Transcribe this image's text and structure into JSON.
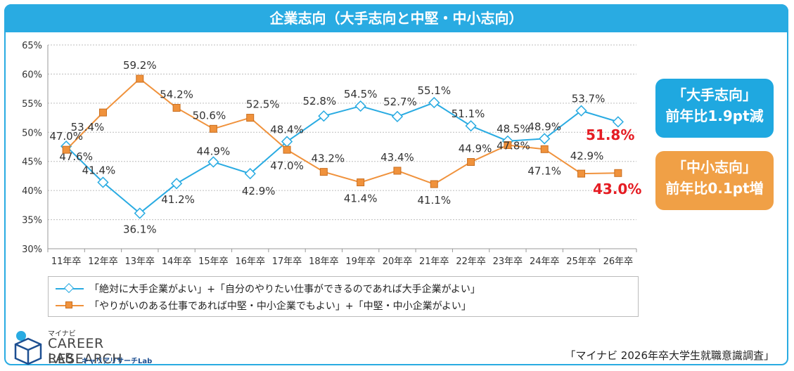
{
  "title": "企業志向（大手志向と中堅・中小志向）",
  "colors": {
    "large": "#29abe2",
    "small": "#f0923c",
    "accent_red": "#e51c23"
  },
  "chart_data": {
    "type": "line",
    "title": "企業志向（大手志向と中堅・中小志向）",
    "categories": [
      "11年卒",
      "12年卒",
      "13年卒",
      "14年卒",
      "15年卒",
      "16年卒",
      "17年卒",
      "18年卒",
      "19年卒",
      "20年卒",
      "21年卒",
      "22年卒",
      "23年卒",
      "24年卒",
      "25年卒",
      "26年卒"
    ],
    "ylim": [
      30,
      65
    ],
    "yticks": [
      "30%",
      "35%",
      "40%",
      "45%",
      "50%",
      "55%",
      "60%",
      "65%"
    ],
    "series": [
      {
        "name": "「絶対に大手企業がよい」+「自分のやりたい仕事ができるのであれば大手企業がよい」",
        "values": [
          47.6,
          41.4,
          36.1,
          41.2,
          44.9,
          42.9,
          48.4,
          52.8,
          54.5,
          52.7,
          55.1,
          51.1,
          48.5,
          48.9,
          53.7,
          51.8
        ],
        "labels": [
          "47.6%",
          "41.4%",
          "36.1%",
          "41.2%",
          "44.9%",
          "42.9%",
          "48.4%",
          "52.8%",
          "54.5%",
          "52.7%",
          "55.1%",
          "51.1%",
          "48.5%",
          "48.9%",
          "53.7%",
          ""
        ]
      },
      {
        "name": "「やりがいのある仕事であれば中堅・中小企業でもよい」+「中堅・中小企業がよい」",
        "values": [
          47.0,
          53.4,
          59.2,
          54.2,
          50.6,
          52.5,
          47.0,
          43.2,
          41.4,
          43.4,
          41.1,
          44.9,
          47.8,
          47.1,
          42.9,
          43.0
        ],
        "labels": [
          "47.0%",
          "53.4%",
          "59.2%",
          "54.2%",
          "50.6%",
          "52.5%",
          "47.0%",
          "43.2%",
          "41.4%",
          "43.4%",
          "41.1%",
          "44.9%",
          "47.8%",
          "47.1%",
          "42.9%",
          ""
        ]
      }
    ]
  },
  "final_values": {
    "large": "51.8%",
    "small": "43.0%"
  },
  "callouts": {
    "large_title": "「大手志向」",
    "large_sub": "前年比1.9pt減",
    "small_title": "「中小志向」",
    "small_sub": "前年比0.1pt増"
  },
  "logo": {
    "top": "マイナビ",
    "main1": "CAREER RESEARCH",
    "main2": "LAB",
    "sub": "キャリアリサーチLab"
  },
  "source": "「マイナビ 2026年卒大学生就職意識調査」"
}
